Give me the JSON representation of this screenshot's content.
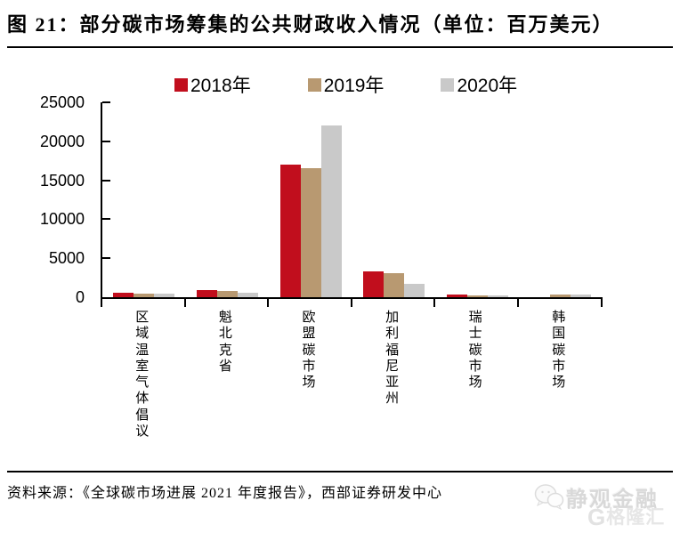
{
  "header": {
    "title": "图 21：部分碳市场筹集的公共财政收入情况（单位：百万美元）"
  },
  "legend": {
    "items": [
      {
        "label": "2018年",
        "color": "#c10e1d"
      },
      {
        "label": "2019年",
        "color": "#b89971"
      },
      {
        "label": "2020年",
        "color": "#c9c9c9"
      }
    ]
  },
  "chart_data": {
    "type": "bar",
    "title": "部分碳市场筹集的公共财政收入情况",
    "unit": "百万美元",
    "categories": [
      "区域温室气体倡议",
      "魁北克省",
      "欧盟碳市场",
      "加利福尼亚州",
      "瑞士碳市场",
      "韩国碳市场"
    ],
    "series": [
      {
        "name": "2018年",
        "color": "#c10e1d",
        "values": [
          600,
          950,
          17000,
          3300,
          350,
          0
        ]
      },
      {
        "name": "2019年",
        "color": "#b89971",
        "values": [
          400,
          750,
          16500,
          3050,
          180,
          380
        ]
      },
      {
        "name": "2020年",
        "color": "#c9c9c9",
        "values": [
          500,
          580,
          22000,
          1750,
          250,
          300
        ]
      }
    ],
    "xlabel": "",
    "ylabel": "",
    "ylim": [
      0,
      25000
    ],
    "yticks": [
      0,
      5000,
      10000,
      15000,
      20000,
      25000
    ],
    "grid": false,
    "legend_position": "top"
  },
  "footer": {
    "source": "资料来源：《全球碳市场进展 2021 年度报告》，西部证券研发中心"
  },
  "watermark": {
    "account_name": "静观金融",
    "logo_letter": "G",
    "logo_text": "格隆汇"
  },
  "colors": {
    "axis": "#000000",
    "background": "#ffffff",
    "series_2018": "#c10e1d",
    "series_2019": "#b89971",
    "series_2020": "#c9c9c9"
  }
}
